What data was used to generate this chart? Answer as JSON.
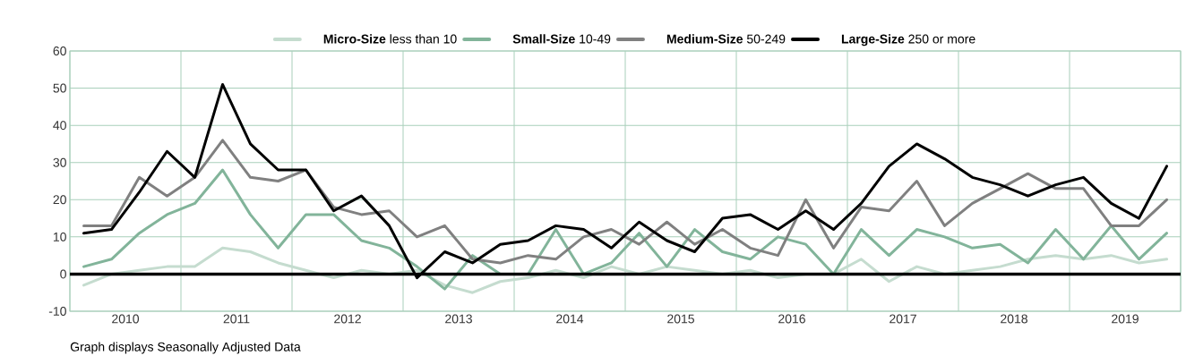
{
  "chart_data": {
    "type": "line",
    "x": [
      2010.125,
      2010.375,
      2010.625,
      2010.875,
      2011.125,
      2011.375,
      2011.625,
      2011.875,
      2012.125,
      2012.375,
      2012.625,
      2012.875,
      2013.125,
      2013.375,
      2013.625,
      2013.875,
      2014.125,
      2014.375,
      2014.625,
      2014.875,
      2015.125,
      2015.375,
      2015.625,
      2015.875,
      2016.125,
      2016.375,
      2016.625,
      2016.875,
      2017.125,
      2017.375,
      2017.625,
      2017.875,
      2018.125,
      2018.375,
      2018.625,
      2018.875,
      2019.125,
      2019.375,
      2019.625,
      2019.875
    ],
    "series": [
      {
        "name": "**Micro-Size** less than 10",
        "color": "#c5dccf",
        "values": [
          -3,
          0,
          1,
          2,
          2,
          7,
          6,
          3,
          1,
          -1,
          1,
          0,
          1,
          -3,
          -5,
          -2,
          -1,
          1,
          -1,
          2,
          0,
          2,
          1,
          0,
          1,
          -1,
          0,
          0,
          4,
          -2,
          2,
          0,
          1,
          2,
          4,
          5,
          4,
          5,
          3,
          4
        ]
      },
      {
        "name": "**Small-Size** 10-49",
        "color": "#82b49a",
        "values": [
          2,
          4,
          11,
          16,
          19,
          28,
          16,
          7,
          16,
          16,
          9,
          7,
          2,
          -4,
          5,
          0,
          0,
          12,
          0,
          3,
          11,
          2,
          12,
          6,
          4,
          10,
          8,
          0,
          12,
          5,
          12,
          10,
          7,
          8,
          3,
          12,
          4,
          13,
          4,
          11
        ]
      },
      {
        "name": "**Medium-Size** 50-249",
        "color": "#808080",
        "values": [
          13,
          13,
          26,
          21,
          26,
          36,
          26,
          25,
          28,
          18,
          16,
          17,
          10,
          13,
          4,
          3,
          5,
          4,
          10,
          12,
          8,
          14,
          8,
          12,
          7,
          5,
          20,
          7,
          18,
          17,
          25,
          13,
          19,
          23,
          27,
          23,
          23,
          13,
          13,
          20
        ]
      },
      {
        "name": "**Large-Size** 250 or more",
        "color": "#000000",
        "values": [
          11,
          12,
          22,
          33,
          26,
          51,
          35,
          28,
          28,
          17,
          21,
          13,
          -1,
          6,
          3,
          8,
          9,
          13,
          12,
          7,
          14,
          9,
          6,
          15,
          16,
          12,
          17,
          12,
          19,
          29,
          35,
          31,
          26,
          24,
          21,
          24,
          26,
          19,
          15,
          29
        ]
      }
    ],
    "xlim": [
      2010,
      2020
    ],
    "xticks": [
      {
        "value": 2010,
        "label": null
      },
      {
        "value": 2011,
        "label": null
      },
      {
        "value": 2012,
        "label": null
      },
      {
        "value": 2013,
        "label": null
      },
      {
        "value": 2014,
        "label": null
      },
      {
        "value": 2015,
        "label": null
      },
      {
        "value": 2016,
        "label": null
      },
      {
        "value": 2017,
        "label": null
      },
      {
        "value": 2018,
        "label": null
      },
      {
        "value": 2019,
        "label": null
      },
      {
        "value": 2020,
        "label": null
      },
      {
        "value": 2010.5,
        "label": "2010"
      },
      {
        "value": 2011.5,
        "label": "2011"
      },
      {
        "value": 2012.5,
        "label": "2012"
      },
      {
        "value": 2013.5,
        "label": "2013"
      },
      {
        "value": 2014.5,
        "label": "2014"
      },
      {
        "value": 2015.5,
        "label": "2015"
      },
      {
        "value": 2016.5,
        "label": "2016"
      },
      {
        "value": 2017.5,
        "label": "2017"
      },
      {
        "value": 2018.5,
        "label": "2018"
      },
      {
        "value": 2019.5,
        "label": "2019"
      }
    ],
    "ylim": [
      -10,
      60
    ],
    "yticks": [
      -10,
      0,
      10,
      20,
      30,
      40,
      50,
      60
    ],
    "ref_lines": [
      {
        "axis": "y",
        "value": 0,
        "color": "#000000"
      }
    ],
    "grid": true,
    "legend": "top",
    "marker": "none",
    "line_style": "solid",
    "annotations": [
      "Graph displays Seasonally Adjusted Data"
    ]
  }
}
